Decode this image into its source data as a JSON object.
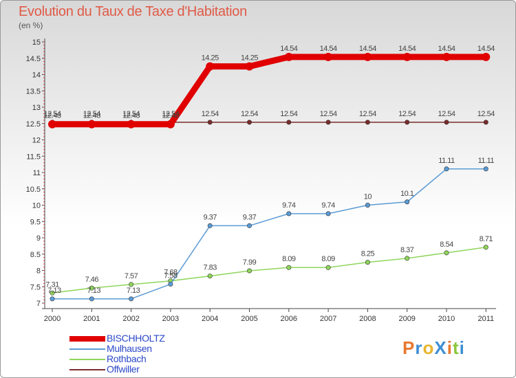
{
  "title": "Evolution du Taux de Taxe d'Habitation",
  "unit_label": "(en %)",
  "logo": {
    "text": "ProXiti",
    "letters": [
      {
        "ch": "P",
        "color": "#e8772e"
      },
      {
        "ch": "r",
        "color": "#3d8fd4"
      },
      {
        "ch": "o",
        "color": "#e8b62e"
      },
      {
        "ch": "X",
        "color": "#3d8fd4"
      },
      {
        "ch": "i",
        "color": "#e8772e"
      },
      {
        "ch": "t",
        "color": "#8cc63f"
      },
      {
        "ch": "i",
        "color": "#3d8fd4"
      }
    ]
  },
  "chart_data": {
    "type": "line",
    "x": [
      "2000",
      "2001",
      "2002",
      "2003",
      "2004",
      "2005",
      "2006",
      "2007",
      "2008",
      "2009",
      "2010",
      "2011"
    ],
    "ylim": [
      7,
      15
    ],
    "yticks": [
      "7",
      "7.5",
      "8",
      "8.5",
      "9",
      "9.5",
      "10",
      "10.5",
      "11",
      "11.5",
      "12",
      "12.5",
      "13",
      "13.5",
      "14",
      "14.5",
      "15"
    ],
    "grid": false,
    "legend_position": "bottom-left",
    "series": [
      {
        "name": "BISCHHOLTZ",
        "color": "#e00000",
        "values": [
          12.48,
          12.48,
          12.48,
          12.48,
          14.25,
          14.25,
          14.54,
          14.54,
          14.54,
          14.54,
          14.54,
          14.54
        ],
        "labels": [
          "12.48",
          "12.48",
          "12.48",
          "12.48",
          "14.25",
          "14.25",
          "14.54",
          "14.54",
          "14.54",
          "14.54",
          "14.54",
          "14.54"
        ]
      },
      {
        "name": "Mulhausen",
        "color": "#5b9bd5",
        "values": [
          7.13,
          7.13,
          7.13,
          7.58,
          9.37,
          9.37,
          9.74,
          9.74,
          10,
          10.1,
          11.11,
          11.11
        ],
        "labels": [
          "7.13",
          "7.13",
          "7.13",
          "7.58",
          "9.37",
          "9.37",
          "9.74",
          "9.74",
          "10",
          "10.1",
          "11.11",
          "11.11"
        ]
      },
      {
        "name": "Rothbach",
        "color": "#8fd55b",
        "values": [
          7.31,
          7.46,
          7.57,
          7.68,
          7.83,
          7.99,
          8.09,
          8.09,
          8.25,
          8.37,
          8.54,
          8.71
        ],
        "labels": [
          "7.31",
          "7.46",
          "7.57",
          "7.68",
          "7.83",
          "7.99",
          "8.09",
          "8.09",
          "8.25",
          "8.37",
          "8.54",
          "8.71"
        ]
      },
      {
        "name": "Offwiller",
        "color": "#7a2b2b",
        "values": [
          12.54,
          12.54,
          12.54,
          12.54,
          12.54,
          12.54,
          12.54,
          12.54,
          12.54,
          12.54,
          12.54,
          12.54
        ],
        "labels": [
          "12.54",
          "12.54",
          "12.54",
          "12.54",
          "12.54",
          "12.54",
          "12.54",
          "12.54",
          "12.54",
          "12.54",
          "12.54",
          "12.54"
        ]
      }
    ]
  }
}
